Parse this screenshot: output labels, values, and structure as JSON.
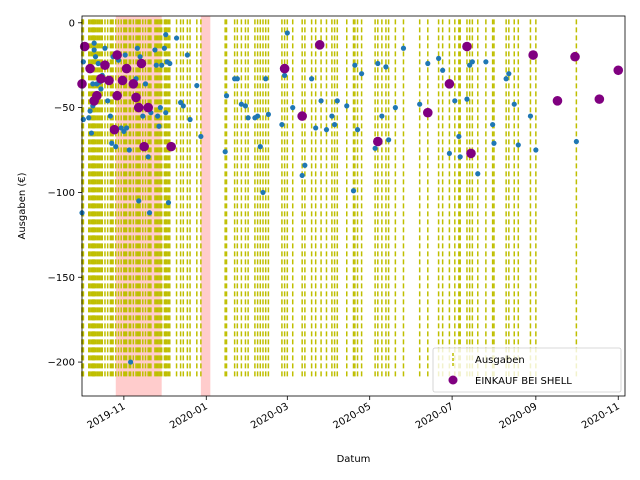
{
  "chart_data": {
    "type": "scatter",
    "xlabel": "Datum",
    "ylabel": "Ausgaben (€)",
    "xlim": [
      "2019-10-01",
      "2020-11-06"
    ],
    "ylim": [
      -220,
      4
    ],
    "x_ticks": [
      {
        "date": "2019-11-01",
        "label": "2019-11"
      },
      {
        "date": "2020-01-01",
        "label": "2020-01"
      },
      {
        "date": "2020-03-01",
        "label": "2020-03"
      },
      {
        "date": "2020-05-01",
        "label": "2020-05"
      },
      {
        "date": "2020-07-01",
        "label": "2020-07"
      },
      {
        "date": "2020-09-01",
        "label": "2020-09"
      },
      {
        "date": "2020-11-01",
        "label": "2020-11"
      }
    ],
    "y_ticks": [
      0,
      -50,
      -100,
      -150,
      -200
    ],
    "grid": false,
    "legend_position": "bottom-right",
    "colors": {
      "vertical_lines": "#bfbf00",
      "shading": "#ffcccc",
      "ausgaben_points": "#1f77b4",
      "shell_points": "#800080"
    },
    "shaded_periods": [
      {
        "start": "2019-10-26",
        "end": "2019-11-29"
      },
      {
        "start": "2019-12-28",
        "end": "2020-01-04"
      }
    ],
    "vline_range": [
      -210,
      2
    ],
    "series": [
      {
        "name": "Ausgaben",
        "marker": "vertical dashed lines and small dots",
        "points": [
          [
            "2019-10-01",
            -36
          ],
          [
            "2019-10-01",
            -112
          ],
          [
            "2019-10-02",
            -57
          ],
          [
            "2019-10-02",
            -23
          ],
          [
            "2019-10-06",
            -56
          ],
          [
            "2019-10-07",
            -52
          ],
          [
            "2019-10-08",
            -65
          ],
          [
            "2019-10-09",
            -49
          ],
          [
            "2019-10-09",
            -36
          ],
          [
            "2019-10-10",
            -12
          ],
          [
            "2019-10-10",
            -16
          ],
          [
            "2019-10-11",
            -20
          ],
          [
            "2019-10-12",
            -36
          ],
          [
            "2019-10-13",
            -24
          ],
          [
            "2019-10-14",
            -35
          ],
          [
            "2019-10-15",
            -39
          ],
          [
            "2019-10-16",
            -31
          ],
          [
            "2019-10-18",
            -15
          ],
          [
            "2019-10-20",
            -46
          ],
          [
            "2019-10-22",
            -55
          ],
          [
            "2019-10-23",
            -71
          ],
          [
            "2019-10-24",
            -20
          ],
          [
            "2019-10-26",
            -73
          ],
          [
            "2019-10-26",
            -64
          ],
          [
            "2019-10-28",
            -22
          ],
          [
            "2019-10-30",
            -62
          ],
          [
            "2019-11-01",
            -64
          ],
          [
            "2019-11-02",
            -19
          ],
          [
            "2019-11-03",
            -62
          ],
          [
            "2019-11-05",
            -75
          ],
          [
            "2019-11-06",
            -200
          ],
          [
            "2019-11-08",
            -36
          ],
          [
            "2019-11-10",
            -33
          ],
          [
            "2019-11-11",
            -15
          ],
          [
            "2019-11-12",
            -105
          ],
          [
            "2019-11-13",
            -20
          ],
          [
            "2019-11-15",
            -55
          ],
          [
            "2019-11-17",
            -36
          ],
          [
            "2019-11-19",
            -79
          ],
          [
            "2019-11-20",
            -112
          ],
          [
            "2019-11-21",
            -53
          ],
          [
            "2019-11-24",
            -16
          ],
          [
            "2019-11-25",
            -25
          ],
          [
            "2019-11-26",
            -55
          ],
          [
            "2019-11-27",
            -61
          ],
          [
            "2019-11-28",
            -50
          ],
          [
            "2019-11-29",
            -25
          ],
          [
            "2019-12-01",
            -15
          ],
          [
            "2019-12-02",
            -53
          ],
          [
            "2019-12-02",
            -7
          ],
          [
            "2019-12-03",
            -23
          ],
          [
            "2019-12-04",
            -106
          ],
          [
            "2019-12-05",
            -24
          ],
          [
            "2019-12-10",
            -9
          ],
          [
            "2019-12-13",
            -47
          ],
          [
            "2019-12-15",
            -49
          ],
          [
            "2019-12-18",
            -19
          ],
          [
            "2019-12-20",
            -57
          ],
          [
            "2019-12-25",
            -37
          ],
          [
            "2019-12-28",
            -67
          ],
          [
            "2020-01-15",
            -76
          ],
          [
            "2020-01-16",
            -43
          ],
          [
            "2020-01-22",
            -33
          ],
          [
            "2020-01-24",
            -33
          ],
          [
            "2020-01-27",
            -48
          ],
          [
            "2020-01-30",
            -49
          ],
          [
            "2020-02-01",
            -56
          ],
          [
            "2020-02-06",
            -56
          ],
          [
            "2020-02-08",
            -55
          ],
          [
            "2020-02-10",
            -73
          ],
          [
            "2020-02-12",
            -100
          ],
          [
            "2020-02-14",
            -33
          ],
          [
            "2020-02-16",
            -54
          ],
          [
            "2020-02-26",
            -60
          ],
          [
            "2020-02-28",
            -31
          ],
          [
            "2020-03-01",
            -6
          ],
          [
            "2020-03-05",
            -50
          ],
          [
            "2020-03-12",
            -90
          ],
          [
            "2020-03-14",
            -84
          ],
          [
            "2020-03-19",
            -33
          ],
          [
            "2020-03-22",
            -62
          ],
          [
            "2020-03-26",
            -46
          ],
          [
            "2020-03-30",
            -63
          ],
          [
            "2020-04-03",
            -55
          ],
          [
            "2020-04-05",
            -60
          ],
          [
            "2020-04-07",
            -46
          ],
          [
            "2020-04-14",
            -49
          ],
          [
            "2020-04-19",
            -99
          ],
          [
            "2020-04-20",
            -25
          ],
          [
            "2020-04-22",
            -63
          ],
          [
            "2020-04-25",
            -30
          ],
          [
            "2020-05-05",
            -74
          ],
          [
            "2020-05-07",
            -24
          ],
          [
            "2020-05-10",
            -55
          ],
          [
            "2020-05-13",
            -26
          ],
          [
            "2020-05-15",
            -69
          ],
          [
            "2020-05-20",
            -50
          ],
          [
            "2020-05-26",
            -15
          ],
          [
            "2020-06-07",
            -48
          ],
          [
            "2020-06-13",
            -24
          ],
          [
            "2020-06-21",
            -21
          ],
          [
            "2020-06-24",
            -28
          ],
          [
            "2020-06-29",
            -77
          ],
          [
            "2020-07-03",
            -46
          ],
          [
            "2020-07-06",
            -67
          ],
          [
            "2020-07-07",
            -79
          ],
          [
            "2020-07-12",
            -45
          ],
          [
            "2020-07-14",
            -25
          ],
          [
            "2020-07-16",
            -23
          ],
          [
            "2020-07-20",
            -89
          ],
          [
            "2020-07-26",
            -23
          ],
          [
            "2020-07-31",
            -60
          ],
          [
            "2020-08-01",
            -71
          ],
          [
            "2020-08-10",
            -33
          ],
          [
            "2020-08-12",
            -30
          ],
          [
            "2020-08-16",
            -48
          ],
          [
            "2020-08-19",
            -72
          ],
          [
            "2020-08-28",
            -55
          ],
          [
            "2020-09-01",
            -75
          ],
          [
            "2020-10-01",
            -70
          ]
        ]
      },
      {
        "name": "EINKAUF BEI SHELL",
        "marker": "large dots",
        "points": [
          [
            "2019-10-01",
            -36
          ],
          [
            "2019-10-03",
            -14
          ],
          [
            "2019-10-07",
            -27
          ],
          [
            "2019-10-10",
            -46
          ],
          [
            "2019-10-12",
            -43
          ],
          [
            "2019-10-15",
            -33
          ],
          [
            "2019-10-18",
            -25
          ],
          [
            "2019-10-21",
            -34
          ],
          [
            "2019-10-25",
            -63
          ],
          [
            "2019-10-27",
            -43
          ],
          [
            "2019-10-27",
            -19
          ],
          [
            "2019-10-31",
            -34
          ],
          [
            "2019-11-03",
            -27
          ],
          [
            "2019-11-08",
            -36
          ],
          [
            "2019-11-10",
            -44
          ],
          [
            "2019-11-12",
            -50
          ],
          [
            "2019-11-14",
            -24
          ],
          [
            "2019-11-16",
            -73
          ],
          [
            "2019-11-19",
            -50
          ],
          [
            "2019-12-06",
            -73
          ],
          [
            "2020-02-28",
            -27
          ],
          [
            "2020-03-12",
            -55
          ],
          [
            "2020-03-25",
            -13
          ],
          [
            "2020-05-07",
            -70
          ],
          [
            "2020-06-13",
            -53
          ],
          [
            "2020-06-29",
            -36
          ],
          [
            "2020-07-12",
            -14
          ],
          [
            "2020-07-15",
            -77
          ],
          [
            "2020-08-30",
            -19
          ],
          [
            "2020-09-17",
            -46
          ],
          [
            "2020-09-30",
            -20
          ],
          [
            "2020-10-18",
            -45
          ],
          [
            "2020-11-01",
            -28
          ]
        ]
      }
    ]
  }
}
